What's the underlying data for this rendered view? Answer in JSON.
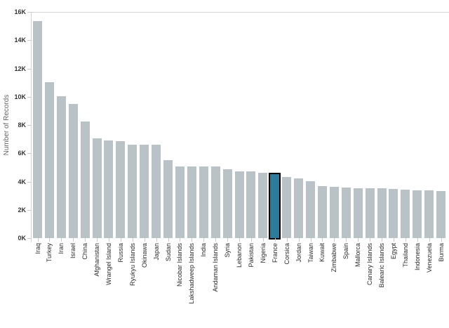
{
  "chart_data": {
    "type": "bar",
    "title": "",
    "xlabel": "",
    "ylabel": "Number of Records",
    "ylim": [
      0,
      16000
    ],
    "grid": "off",
    "legend": "none",
    "y_ticks": [
      "0K",
      "2K",
      "4K",
      "6K",
      "8K",
      "10K",
      "12K",
      "14K",
      "16K"
    ],
    "y_tick_values": [
      0,
      2000,
      4000,
      6000,
      8000,
      10000,
      12000,
      14000,
      16000
    ],
    "categories": [
      "Iraq",
      "Turkey",
      "Iran",
      "Israel",
      "China",
      "Afghanistan",
      "Wrangel Island",
      "Russia",
      "Ryukyu Islands",
      "Okinawa",
      "Japan",
      "Sudan",
      "Nicobar Islands",
      "Lakshadweep Islands",
      "India",
      "Andaman Islands",
      "Syria",
      "Lebanon",
      "Pakistan",
      "Nigeria",
      "France",
      "Corsica",
      "Jordan",
      "Taiwan",
      "Kuwait",
      "Zimbabwe",
      "Spain",
      "Mallorca",
      "Canary Islands",
      "Balearic Islands",
      "Egypt",
      "Thailand",
      "Indonesia",
      "Venezuela",
      "Burma"
    ],
    "values": [
      15350,
      11050,
      10050,
      9500,
      8250,
      7050,
      6900,
      6850,
      6600,
      6600,
      6600,
      5500,
      5050,
      5050,
      5050,
      5050,
      4850,
      4700,
      4700,
      4600,
      4500,
      4350,
      4250,
      4050,
      3700,
      3650,
      3600,
      3550,
      3550,
      3550,
      3500,
      3450,
      3400,
      3400,
      3350
    ],
    "highlighted_category": "France",
    "highlight_index": 20,
    "colors": {
      "bar": "#b9c2c6",
      "highlight_fill": "#2a7b9c",
      "highlight_border": "#000000",
      "axis_line": "#d4d4d4",
      "tick_label": "#333333",
      "x_label": "#2b2b2b",
      "axis_title": "#666666"
    }
  }
}
